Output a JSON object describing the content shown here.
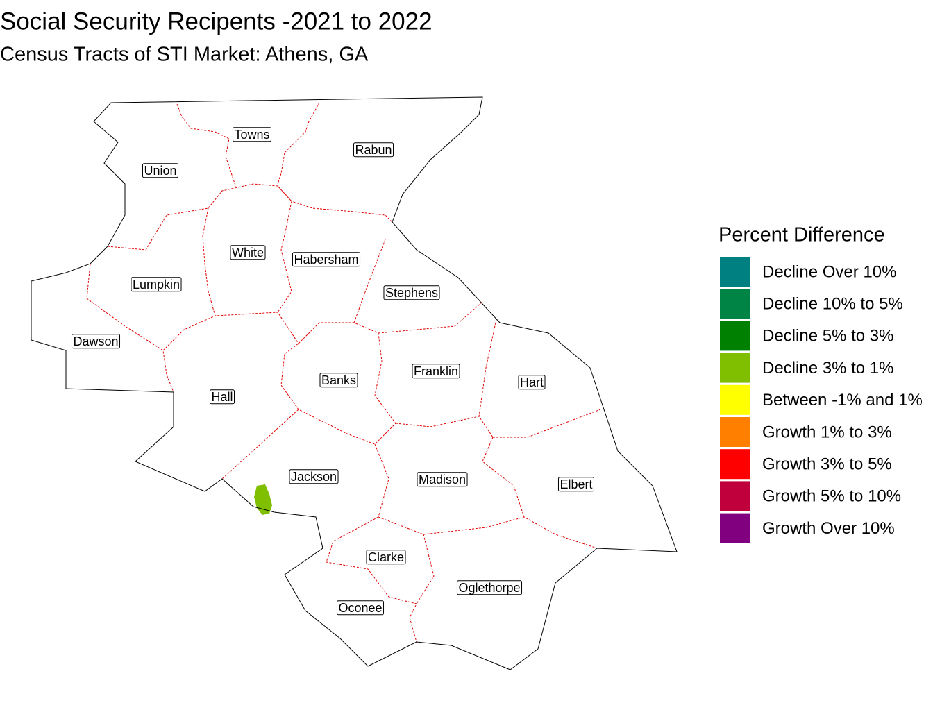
{
  "title": "Social Security Recipents -2021 to 2022",
  "subtitle": "Census Tracts of STI Market: Athens, GA",
  "counties": [
    "Towns",
    "Rabun",
    "Union",
    "White",
    "Habersham",
    "Lumpkin",
    "Stephens",
    "Dawson",
    "Banks",
    "Franklin",
    "Hart",
    "Hall",
    "Jackson",
    "Madison",
    "Elbert",
    "Clarke",
    "Oglethorpe",
    "Oconee"
  ],
  "legend": {
    "title": "Percent Difference",
    "items": [
      {
        "label": "Decline Over 10%",
        "color": "#008080"
      },
      {
        "label": "Decline 10% to 5%",
        "color": "#008445"
      },
      {
        "label": "Decline 5% to 3%",
        "color": "#008000"
      },
      {
        "label": "Decline 3% to 1%",
        "color": "#7fbf00"
      },
      {
        "label": "Between -1% and 1%",
        "color": "#ffff00"
      },
      {
        "label": "Growth 1% to 3%",
        "color": "#ff8000"
      },
      {
        "label": "Growth 3% to 5%",
        "color": "#ff0000"
      },
      {
        "label": "Growth 5% to 10%",
        "color": "#c0003c"
      },
      {
        "label": "Growth Over 10%",
        "color": "#800080"
      }
    ]
  }
}
